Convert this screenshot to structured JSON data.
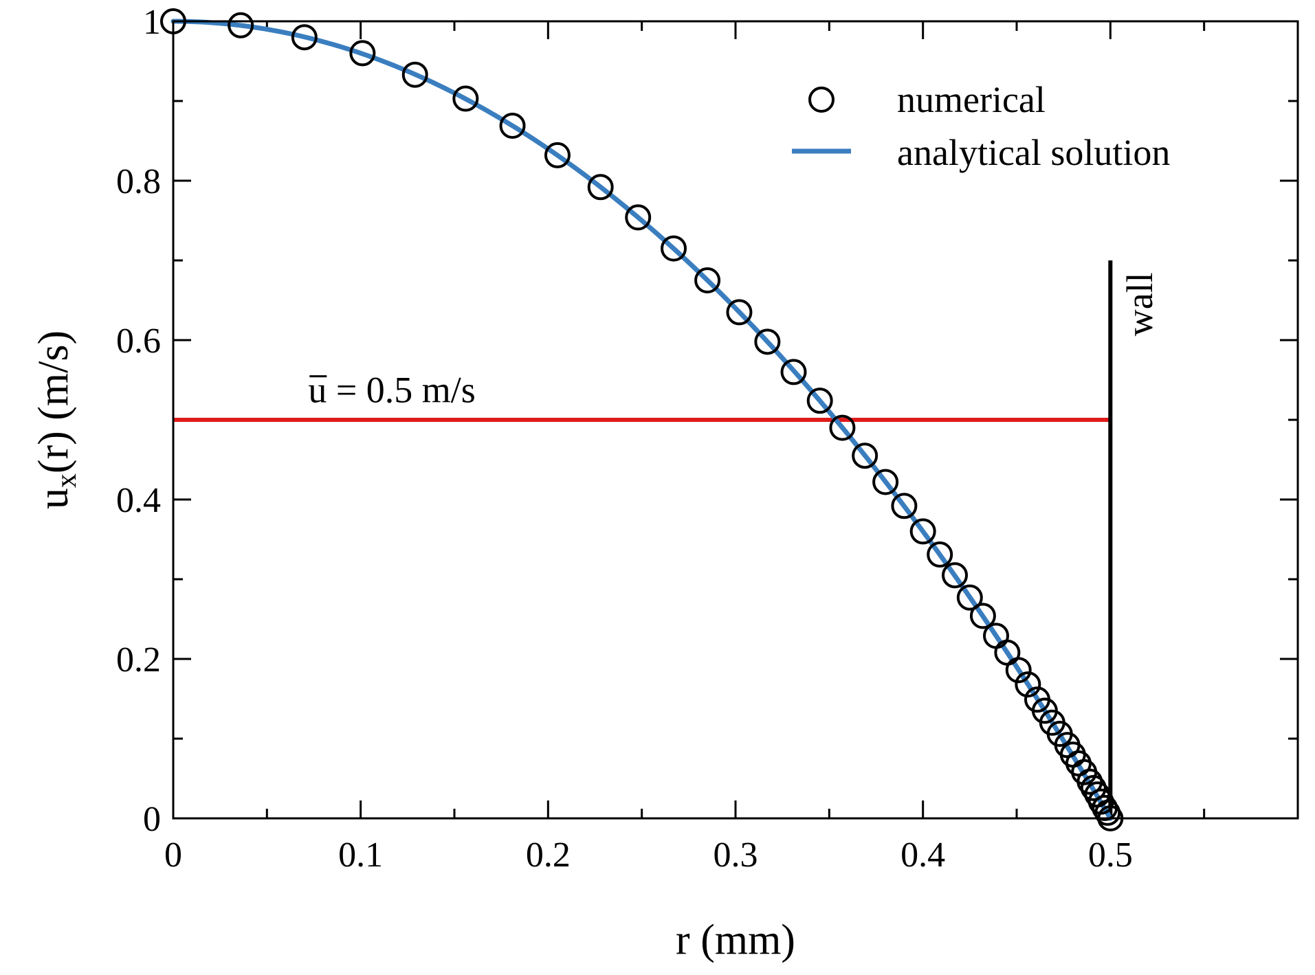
{
  "chart_data": {
    "type": "scatter",
    "title": "",
    "xlabel": "r (mm)",
    "ylabel_base": "u",
    "ylabel_sub": "x",
    "ylabel_rest": "(r) (m/s)",
    "xlim": [
      0,
      0.6
    ],
    "ylim": [
      0,
      1
    ],
    "xticks": [
      0,
      0.1,
      0.2,
      0.3,
      0.4,
      0.5
    ],
    "xtick_labels": [
      "0",
      "0.1",
      "0.2",
      "0.3",
      "0.4",
      "0.5"
    ],
    "yticks": [
      0,
      0.2,
      0.4,
      0.6,
      0.8,
      1
    ],
    "ytick_labels": [
      "0",
      "0.2",
      "0.4",
      "0.6",
      "0.8",
      "1"
    ],
    "x_minor_step": 0.05,
    "y_minor_step": 0.1,
    "grid": false,
    "legend_position": "top-right",
    "series": [
      {
        "name": "numerical",
        "kind": "markers",
        "marker": "open-circle",
        "color": "#000000",
        "x": [
          0.0,
          0.036,
          0.07,
          0.101,
          0.129,
          0.156,
          0.181,
          0.205,
          0.228,
          0.248,
          0.267,
          0.285,
          0.302,
          0.317,
          0.331,
          0.345,
          0.357,
          0.369,
          0.38,
          0.39,
          0.4,
          0.409,
          0.417,
          0.425,
          0.432,
          0.439,
          0.445,
          0.451,
          0.456,
          0.461,
          0.465,
          0.469,
          0.473,
          0.477,
          0.48,
          0.483,
          0.486,
          0.489,
          0.491,
          0.493,
          0.495,
          0.497,
          0.4985,
          0.5
        ],
        "y": [
          1.0,
          0.995,
          0.98,
          0.96,
          0.933,
          0.903,
          0.869,
          0.832,
          0.792,
          0.754,
          0.715,
          0.675,
          0.635,
          0.598,
          0.56,
          0.524,
          0.49,
          0.455,
          0.422,
          0.392,
          0.36,
          0.331,
          0.305,
          0.277,
          0.254,
          0.229,
          0.208,
          0.186,
          0.168,
          0.149,
          0.135,
          0.12,
          0.106,
          0.092,
          0.08,
          0.069,
          0.058,
          0.046,
          0.038,
          0.03,
          0.021,
          0.013,
          0.007,
          0.0
        ]
      },
      {
        "name": "analytical solution",
        "kind": "line",
        "color": "#3a7ebf",
        "formula": "u = 1 - (r/0.5)^2",
        "r_max": 0.5,
        "u_max": 1
      }
    ],
    "annotations": [
      {
        "type": "hline",
        "name": "mean-velocity-line",
        "y": 0.5,
        "x_from": 0,
        "x_to": 0.5,
        "color": "#e01b1b"
      },
      {
        "type": "label",
        "name": "mean-velocity-label",
        "text_base": "u",
        "text_rest": " = 0.5 m/s",
        "overbar": true,
        "x": 0.072,
        "y": 0.515
      },
      {
        "type": "vline",
        "name": "wall-line",
        "x": 0.5,
        "y_from": 0,
        "y_to": 0.7,
        "color": "#000000"
      },
      {
        "type": "label",
        "name": "wall-label",
        "text": "wall",
        "rotated": true,
        "x": 0.52,
        "y": 0.645
      }
    ]
  }
}
